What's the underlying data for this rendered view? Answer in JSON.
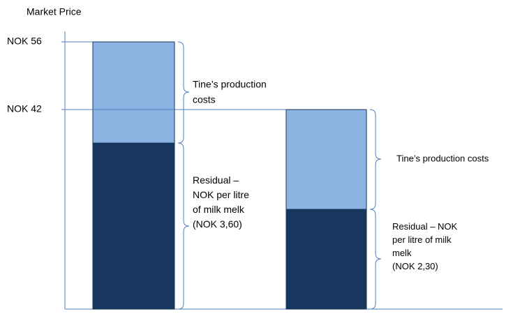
{
  "axis_label": "Market Price",
  "price_levels": [
    "NOK 56",
    "NOK 42"
  ],
  "bars": [
    {
      "top_label_lines": [
        "Tine’s production",
        "costs"
      ],
      "bottom_label_lines": [
        "Residual –",
        "NOK per litre",
        "of milk melk",
        "(NOK 3,60)"
      ]
    },
    {
      "top_label_lines": [
        "Tine’s production costs"
      ],
      "bottom_label_lines": [
        "Residual – NOK",
        "per litre of milk",
        "melk",
        "(NOK 2,30)"
      ]
    }
  ]
}
